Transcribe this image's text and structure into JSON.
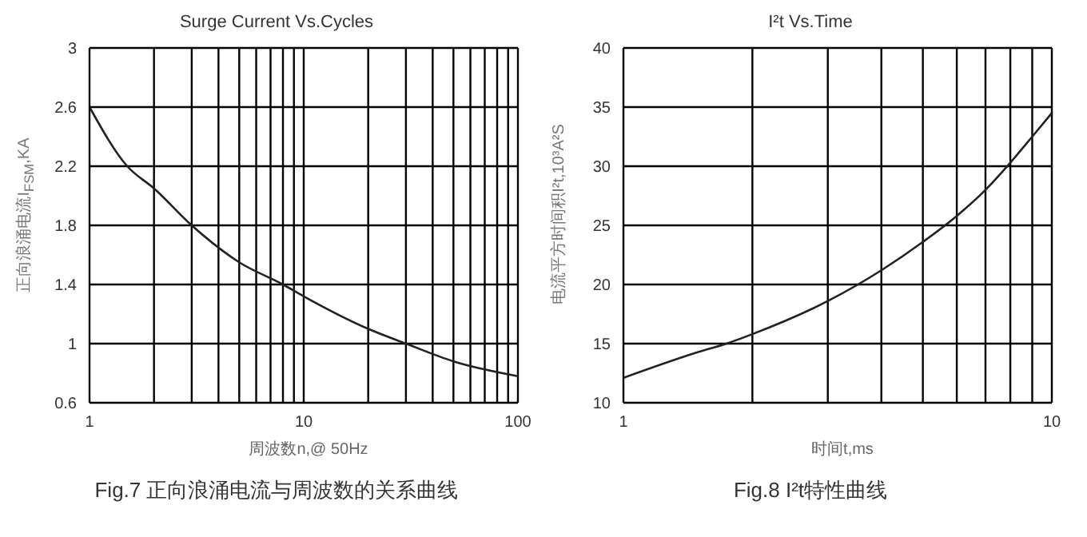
{
  "chart_data": [
    {
      "type": "line",
      "title": "Surge Current Vs.Cycles",
      "xlabel": "周波数n,@ 50Hz",
      "ylabel": "正向浪涌电流I$_{FSM}$,KA",
      "log": "x",
      "grid": true,
      "marker": "none",
      "line_style": "solid",
      "x": [
        1,
        1.5,
        2,
        3,
        5,
        8,
        10,
        20,
        30,
        50,
        100
      ],
      "values": [
        2.6,
        2.2,
        2.05,
        1.8,
        1.55,
        1.4,
        1.32,
        1.1,
        1.0,
        0.88,
        0.78
      ],
      "color": "#222222",
      "xlim": [
        1,
        100
      ],
      "xticks": [
        1,
        {
          "value": 2,
          "label": null
        },
        {
          "value": 3,
          "label": null
        },
        {
          "value": 4,
          "label": null
        },
        {
          "value": 5,
          "label": null
        },
        {
          "value": 6,
          "label": null
        },
        {
          "value": 7,
          "label": null
        },
        {
          "value": 8,
          "label": null
        },
        {
          "value": 9,
          "label": null
        },
        10,
        {
          "value": 20,
          "label": null
        },
        {
          "value": 30,
          "label": null
        },
        {
          "value": 40,
          "label": null
        },
        {
          "value": 50,
          "label": null
        },
        {
          "value": 60,
          "label": null
        },
        {
          "value": 70,
          "label": null
        },
        {
          "value": 80,
          "label": null
        },
        {
          "value": 90,
          "label": null
        },
        100
      ],
      "ylim": [
        0.6,
        3
      ],
      "yticks": [
        0.6,
        1,
        1.4,
        1.8,
        2.2,
        2.6,
        3
      ],
      "annotations": [
        "Fig.7 正向浪涌电流与周波数的关系曲线"
      ]
    },
    {
      "type": "line",
      "title": "I²t  Vs.Time",
      "xlabel": "时间t,ms",
      "ylabel": "电流平方时间积I²t,10³A²S",
      "log": "x",
      "grid": true,
      "marker": "none",
      "line_style": "solid",
      "x": [
        1,
        1.5,
        1.74,
        2,
        3,
        4,
        5,
        6,
        7,
        8,
        9,
        10
      ],
      "values": [
        12.1,
        14.3,
        15,
        15.8,
        18.6,
        21.2,
        23.6,
        25.8,
        28,
        30.3,
        32.5,
        34.5
      ],
      "color": "#222222",
      "xlim": [
        1,
        10
      ],
      "xticks": [
        1,
        {
          "value": 2,
          "label": null
        },
        {
          "value": 3,
          "label": null
        },
        {
          "value": 4,
          "label": null
        },
        {
          "value": 5,
          "label": null
        },
        {
          "value": 6,
          "label": null
        },
        {
          "value": 7,
          "label": null
        },
        {
          "value": 8,
          "label": null
        },
        {
          "value": 9,
          "label": null
        },
        10
      ],
      "ylim": [
        10,
        40
      ],
      "yticks": [
        10,
        15,
        20,
        25,
        30,
        35,
        40
      ],
      "annotations": [
        "Fig.8 I²t特性曲线"
      ]
    }
  ]
}
